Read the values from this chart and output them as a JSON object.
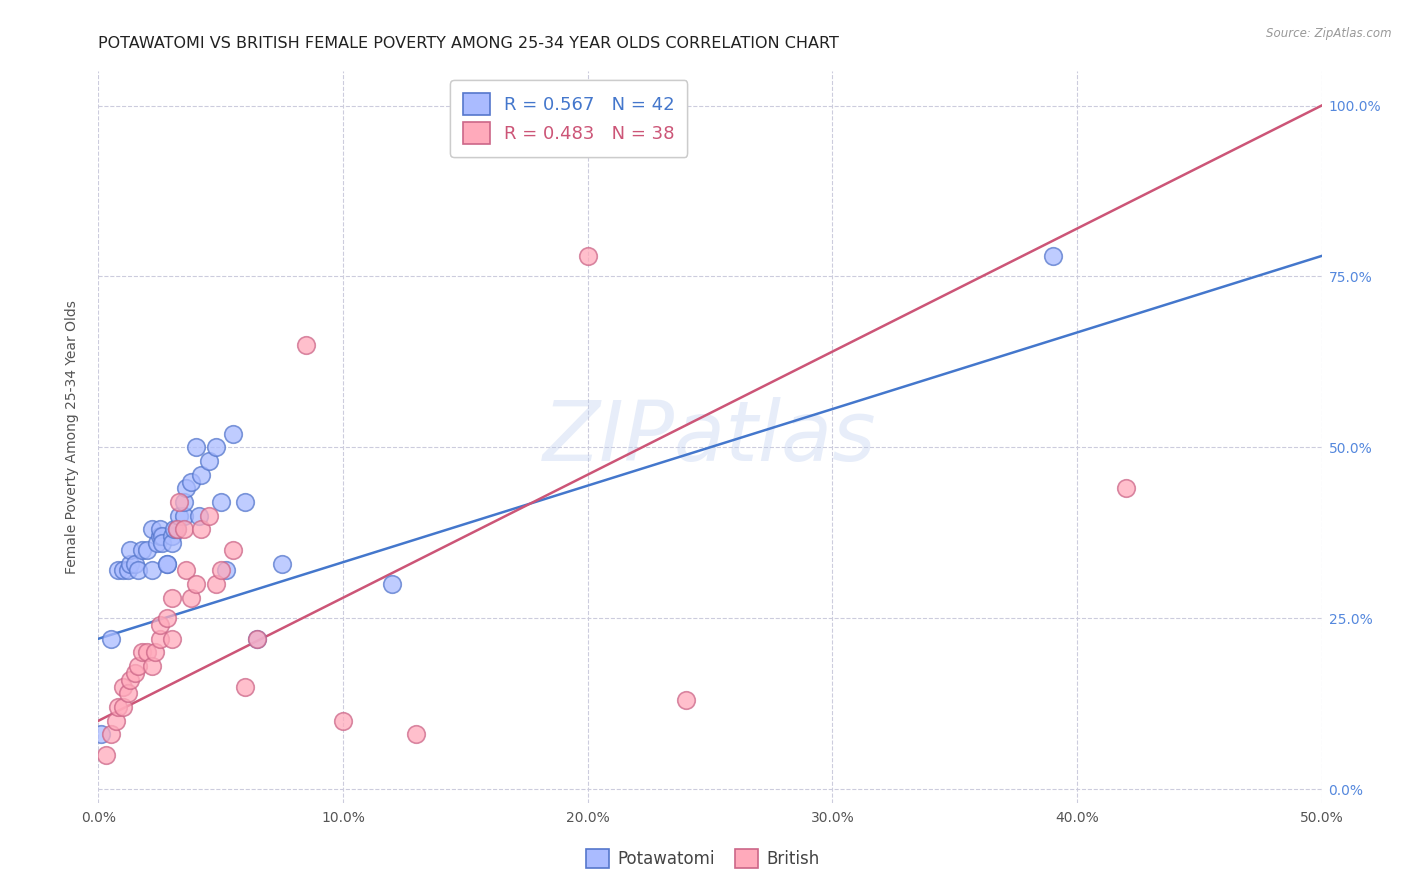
{
  "title": "POTAWATOMI VS BRITISH FEMALE POVERTY AMONG 25-34 YEAR OLDS CORRELATION CHART",
  "source": "Source: ZipAtlas.com",
  "ylabel": "Female Poverty Among 25-34 Year Olds",
  "xlim": [
    0.0,
    0.5
  ],
  "ylim": [
    -0.02,
    1.05
  ],
  "xtick_labels": [
    "0.0%",
    "10.0%",
    "20.0%",
    "30.0%",
    "40.0%",
    "50.0%"
  ],
  "xtick_vals": [
    0.0,
    0.1,
    0.2,
    0.3,
    0.4,
    0.5
  ],
  "ytick_labels": [
    "0.0%",
    "25.0%",
    "50.0%",
    "75.0%",
    "100.0%"
  ],
  "ytick_vals": [
    0.0,
    0.25,
    0.5,
    0.75,
    1.0
  ],
  "legend_R_blue": "R = 0.567",
  "legend_N_blue": "N = 42",
  "legend_R_pink": "R = 0.483",
  "legend_N_pink": "N = 38",
  "blue_scatter_face": "#aabbff",
  "blue_scatter_edge": "#5577cc",
  "pink_scatter_face": "#ffaabb",
  "pink_scatter_edge": "#cc6688",
  "blue_line_color": "#4477cc",
  "pink_line_color": "#cc5577",
  "blue_text_color": "#4477cc",
  "pink_text_color": "#cc5577",
  "right_tick_color": "#5588dd",
  "watermark_color": "#bbccee",
  "watermark_alpha": 0.35,
  "title_fontsize": 11.5,
  "axis_label_fontsize": 10,
  "tick_fontsize": 10,
  "legend_fontsize": 13,
  "potawatomi_x": [
    0.001,
    0.005,
    0.008,
    0.01,
    0.012,
    0.013,
    0.013,
    0.015,
    0.016,
    0.018,
    0.02,
    0.022,
    0.022,
    0.024,
    0.025,
    0.025,
    0.026,
    0.026,
    0.028,
    0.028,
    0.03,
    0.03,
    0.031,
    0.032,
    0.033,
    0.035,
    0.035,
    0.036,
    0.038,
    0.04,
    0.041,
    0.042,
    0.045,
    0.048,
    0.05,
    0.052,
    0.055,
    0.06,
    0.065,
    0.075,
    0.12,
    0.39
  ],
  "potawatomi_y": [
    0.08,
    0.22,
    0.32,
    0.32,
    0.32,
    0.33,
    0.35,
    0.33,
    0.32,
    0.35,
    0.35,
    0.38,
    0.32,
    0.36,
    0.37,
    0.38,
    0.37,
    0.36,
    0.33,
    0.33,
    0.37,
    0.36,
    0.38,
    0.38,
    0.4,
    0.4,
    0.42,
    0.44,
    0.45,
    0.5,
    0.4,
    0.46,
    0.48,
    0.5,
    0.42,
    0.32,
    0.52,
    0.42,
    0.22,
    0.33,
    0.3,
    0.78
  ],
  "british_x": [
    0.003,
    0.005,
    0.007,
    0.008,
    0.01,
    0.01,
    0.012,
    0.013,
    0.015,
    0.016,
    0.018,
    0.02,
    0.022,
    0.023,
    0.025,
    0.025,
    0.028,
    0.03,
    0.03,
    0.032,
    0.033,
    0.035,
    0.036,
    0.038,
    0.04,
    0.042,
    0.045,
    0.048,
    0.05,
    0.055,
    0.06,
    0.065,
    0.085,
    0.1,
    0.13,
    0.2,
    0.24,
    0.42
  ],
  "british_y": [
    0.05,
    0.08,
    0.1,
    0.12,
    0.12,
    0.15,
    0.14,
    0.16,
    0.17,
    0.18,
    0.2,
    0.2,
    0.18,
    0.2,
    0.22,
    0.24,
    0.25,
    0.22,
    0.28,
    0.38,
    0.42,
    0.38,
    0.32,
    0.28,
    0.3,
    0.38,
    0.4,
    0.3,
    0.32,
    0.35,
    0.15,
    0.22,
    0.65,
    0.1,
    0.08,
    0.78,
    0.13,
    0.44
  ],
  "blue_trendline_x": [
    0.0,
    0.5
  ],
  "blue_trendline_y": [
    0.22,
    0.78
  ],
  "pink_trendline_x": [
    0.0,
    0.5
  ],
  "pink_trendline_y": [
    0.1,
    1.0
  ],
  "background_color": "#ffffff",
  "grid_color": "#ccccdd",
  "grid_linestyle": "--",
  "grid_linewidth": 0.8
}
